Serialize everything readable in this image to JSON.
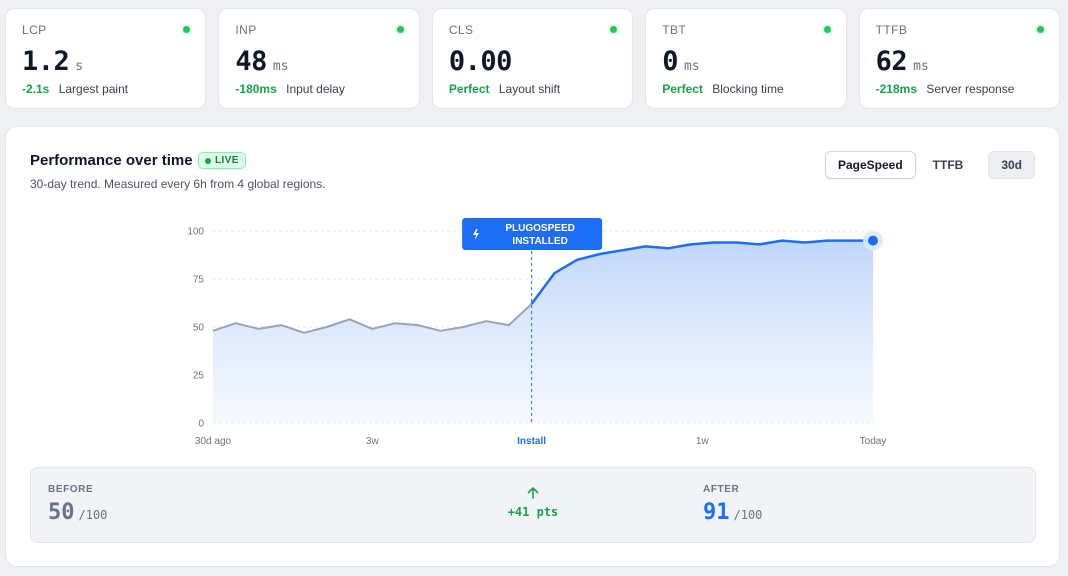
{
  "metrics": [
    {
      "label": "LCP",
      "value": "1.2",
      "unit": "s",
      "delta": "-2.1s",
      "sub": "Largest paint"
    },
    {
      "label": "INP",
      "value": "48",
      "unit": "ms",
      "delta": "-180ms",
      "sub": "Input delay"
    },
    {
      "label": "CLS",
      "value": "0.00",
      "unit": "",
      "delta": "Perfect",
      "sub": "Layout shift"
    },
    {
      "label": "TBT",
      "value": "0",
      "unit": "ms",
      "delta": "Perfect",
      "sub": "Blocking time"
    },
    {
      "label": "TTFB",
      "value": "62",
      "unit": "ms",
      "delta": "-218ms",
      "sub": "Server response"
    }
  ],
  "panel": {
    "title": "Performance over time",
    "live": "LIVE",
    "subtitle": "30-day trend. Measured every 6h from 4 global regions.",
    "controls": [
      "PageSpeed",
      "TTFB",
      "30d"
    ]
  },
  "chart_data": {
    "type": "area",
    "x_labels": [
      "30d ago",
      "3w",
      "Install",
      "1w",
      "Today"
    ],
    "y_ticks": [
      0,
      25,
      50,
      75,
      100
    ],
    "ylim": [
      0,
      100
    ],
    "grid": true,
    "marker": {
      "label_line1": "PLUGOSPEED",
      "label_line2": "INSTALLED",
      "at_index": 14
    },
    "series": [
      {
        "values": [
          48,
          52,
          49,
          51,
          47,
          50,
          54,
          49,
          52,
          51,
          48,
          50,
          53,
          51,
          62,
          78,
          85,
          88,
          90,
          92,
          91,
          93,
          94,
          94,
          93,
          95,
          94,
          95,
          95,
          95
        ]
      }
    ],
    "colors": {
      "before": "#9ca3af",
      "after": "#1e6ef5",
      "fill": "#dbeafe"
    }
  },
  "summary": {
    "before_label": "BEFORE",
    "before_value": "50",
    "before_den": "/100",
    "delta": "+41 pts",
    "after_label": "AFTER",
    "after_value": "91",
    "after_den": "/100"
  },
  "colors": {
    "accent": "#1e6ef5",
    "good": "#16a34a"
  }
}
